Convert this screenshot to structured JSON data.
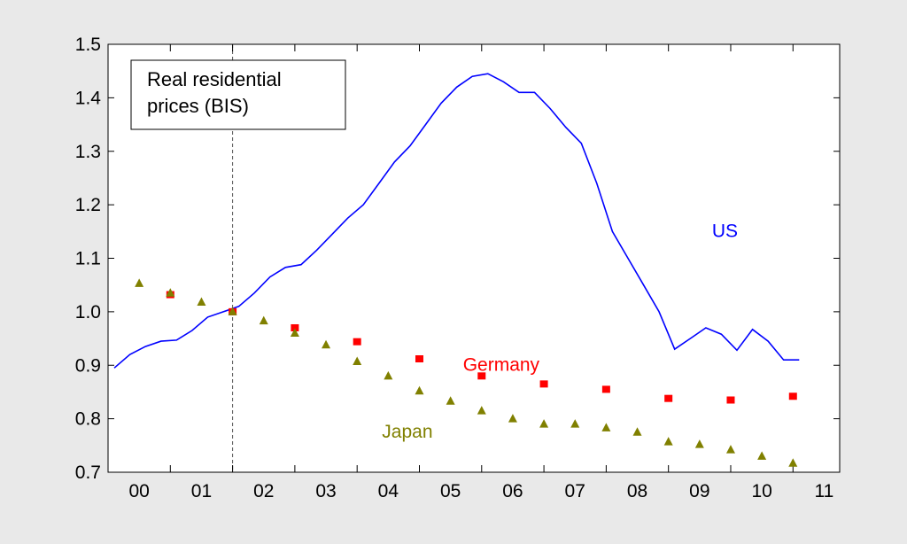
{
  "chart_data": {
    "type": "line",
    "title_lines": [
      "Real residential",
      "prices (BIS)"
    ],
    "xlabel": "",
    "ylabel": "",
    "ylim": [
      0.7,
      1.5
    ],
    "xlim": [
      1999.5,
      2011.25
    ],
    "grid": false,
    "reference_line_x": 2001.5,
    "x_tick_labels": [
      "00",
      "01",
      "02",
      "03",
      "04",
      "05",
      "06",
      "07",
      "08",
      "09",
      "10",
      "11"
    ],
    "y_tick_labels": [
      "0.7",
      "0.8",
      "0.9",
      "1.0",
      "1.1",
      "1.2",
      "1.3",
      "1.4",
      "1.5"
    ],
    "series": [
      {
        "name": "US",
        "style": "line",
        "color": "#0000ff",
        "x": [
          1999.6,
          1999.85,
          2000.1,
          2000.35,
          2000.6,
          2000.85,
          2001.1,
          2001.35,
          2001.6,
          2001.85,
          2002.1,
          2002.35,
          2002.6,
          2002.85,
          2003.1,
          2003.35,
          2003.6,
          2003.85,
          2004.1,
          2004.35,
          2004.6,
          2004.85,
          2005.1,
          2005.35,
          2005.6,
          2005.85,
          2006.1,
          2006.35,
          2006.6,
          2006.85,
          2007.1,
          2007.35,
          2007.6,
          2007.85,
          2008.1,
          2008.35,
          2008.6,
          2008.85,
          2009.1,
          2009.35,
          2009.6,
          2009.85,
          2010.1,
          2010.35,
          2010.6
        ],
        "y": [
          0.895,
          0.92,
          0.935,
          0.945,
          0.947,
          0.965,
          0.99,
          1.0,
          1.01,
          1.035,
          1.065,
          1.083,
          1.088,
          1.115,
          1.145,
          1.175,
          1.2,
          1.24,
          1.28,
          1.31,
          1.35,
          1.39,
          1.42,
          1.44,
          1.445,
          1.43,
          1.41,
          1.41,
          1.38,
          1.345,
          1.315,
          1.24,
          1.15,
          1.1,
          1.05,
          1.0,
          0.93,
          0.95,
          0.97,
          0.958,
          0.928,
          0.967,
          0.945,
          0.91,
          0.91
        ]
      },
      {
        "name": "Germany",
        "style": "marker",
        "marker": "square",
        "color": "#ff0000",
        "x": [
          2000.5,
          2001.5,
          2002.5,
          2003.5,
          2004.5,
          2005.5,
          2006.5,
          2007.5,
          2008.5,
          2009.5,
          2010.5
        ],
        "y": [
          1.032,
          1.0,
          0.97,
          0.944,
          0.912,
          0.88,
          0.865,
          0.855,
          0.838,
          0.835,
          0.842
        ]
      },
      {
        "name": "Japan",
        "style": "marker",
        "marker": "triangle",
        "color": "#808000",
        "x": [
          2000.0,
          2000.5,
          2001.0,
          2001.5,
          2002.0,
          2002.5,
          2003.0,
          2003.5,
          2004.0,
          2004.5,
          2005.0,
          2005.5,
          2006.0,
          2006.5,
          2007.0,
          2007.5,
          2008.0,
          2008.5,
          2009.0,
          2009.5,
          2010.0,
          2010.5
        ],
        "y": [
          1.053,
          1.035,
          1.018,
          1.0,
          0.983,
          0.96,
          0.938,
          0.907,
          0.88,
          0.852,
          0.833,
          0.815,
          0.8,
          0.79,
          0.79,
          0.783,
          0.775,
          0.757,
          0.752,
          0.742,
          0.73,
          0.717
        ]
      }
    ],
    "series_labels": [
      {
        "text": "US",
        "color": "#0000ff",
        "x": 2009.2,
        "y": 1.14
      },
      {
        "text": "Germany",
        "color": "#ff0000",
        "x": 2005.2,
        "y": 0.89
      },
      {
        "text": "Japan",
        "color": "#808000",
        "x": 2003.9,
        "y": 0.765
      }
    ]
  }
}
